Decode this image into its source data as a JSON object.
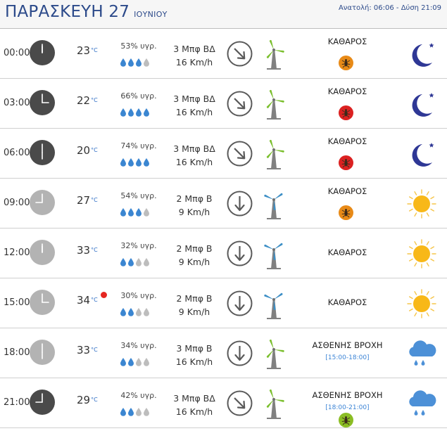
{
  "header": {
    "day": "ΠΑΡΑΣΚΕΥΗ 27",
    "month": "ΙΟΥΝΙΟΥ",
    "sun_times": "Ανατολή: 06:06  - Δύση 21:09"
  },
  "colors": {
    "title_blue": "#2c4a8a",
    "drop_filled": "#3b86d1",
    "drop_empty": "#bdbdbd",
    "turbine_green": "#7bbf2e",
    "turbine_blue": "#3d8fc6",
    "moon": "#2e3795",
    "sun": "#f8b818",
    "cloud": "#4c90d7",
    "badge_orange": "#e88a17",
    "badge_red": "#db2121",
    "badge_green": "#8bbd24",
    "hot_dot": "#e52620"
  },
  "rows": [
    {
      "time": "00:00",
      "clock": "dark",
      "temp": "23",
      "temp_unit": "°C",
      "hot": false,
      "humidity": "53% υγρ.",
      "drops_filled": 3,
      "wind_force": "3 Μπφ ΒΔ",
      "wind_speed": "16 Km/h",
      "wind_dir": "NW",
      "turbine": "green",
      "condition": "ΚΑΘΑΡΟΣ",
      "range": "",
      "badge": "orange",
      "weather_icon": "moon-icon"
    },
    {
      "time": "03:00",
      "clock": "dark",
      "temp": "22",
      "temp_unit": "°C",
      "hot": false,
      "humidity": "66% υγρ.",
      "drops_filled": 4,
      "wind_force": "3 Μπφ ΒΔ",
      "wind_speed": "16 Km/h",
      "wind_dir": "NW",
      "turbine": "green",
      "condition": "ΚΑΘΑΡΟΣ",
      "range": "",
      "badge": "red",
      "weather_icon": "moon-icon"
    },
    {
      "time": "06:00",
      "clock": "dark",
      "temp": "20",
      "temp_unit": "°C",
      "hot": false,
      "humidity": "74% υγρ.",
      "drops_filled": 4,
      "wind_force": "3 Μπφ ΒΔ",
      "wind_speed": "16 Km/h",
      "wind_dir": "NW",
      "turbine": "green",
      "condition": "ΚΑΘΑΡΟΣ",
      "range": "",
      "badge": "red",
      "weather_icon": "moon-icon"
    },
    {
      "time": "09:00",
      "clock": "light",
      "temp": "27",
      "temp_unit": "°C",
      "hot": false,
      "humidity": "54% υγρ.",
      "drops_filled": 3,
      "wind_force": "2 Μπφ Β",
      "wind_speed": "9 Km/h",
      "wind_dir": "N",
      "turbine": "blue",
      "condition": "ΚΑΘΑΡΟΣ",
      "range": "",
      "badge": "orange",
      "weather_icon": "sun-icon"
    },
    {
      "time": "12:00",
      "clock": "light",
      "temp": "33",
      "temp_unit": "°C",
      "hot": false,
      "humidity": "32% υγρ.",
      "drops_filled": 2,
      "wind_force": "2 Μπφ Β",
      "wind_speed": "9 Km/h",
      "wind_dir": "N",
      "turbine": "blue",
      "condition": "ΚΑΘΑΡΟΣ",
      "range": "",
      "badge": "",
      "weather_icon": "sun-icon"
    },
    {
      "time": "15:00",
      "clock": "light",
      "temp": "34",
      "temp_unit": "°C",
      "hot": true,
      "humidity": "30% υγρ.",
      "drops_filled": 2,
      "wind_force": "2 Μπφ Β",
      "wind_speed": "9 Km/h",
      "wind_dir": "N",
      "turbine": "blue",
      "condition": "ΚΑΘΑΡΟΣ",
      "range": "",
      "badge": "",
      "weather_icon": "sun-icon"
    },
    {
      "time": "18:00",
      "clock": "light",
      "temp": "33",
      "temp_unit": "°C",
      "hot": false,
      "humidity": "34% υγρ.",
      "drops_filled": 2,
      "wind_force": "3 Μπφ Β",
      "wind_speed": "16 Km/h",
      "wind_dir": "N",
      "turbine": "green",
      "condition": "ΑΣΘΕΝΗΣ ΒΡΟΧΗ",
      "range": "[15:00-18:00]",
      "badge": "",
      "weather_icon": "rain-cloud-icon"
    },
    {
      "time": "21:00",
      "clock": "dark",
      "temp": "29",
      "temp_unit": "°C",
      "hot": false,
      "humidity": "42% υγρ.",
      "drops_filled": 2,
      "wind_force": "3 Μπφ ΒΔ",
      "wind_speed": "16 Km/h",
      "wind_dir": "NW",
      "turbine": "green",
      "condition": "ΑΣΘΕΝΗΣ ΒΡΟΧΗ",
      "range": "[18:00-21:00]",
      "badge": "green",
      "weather_icon": "rain-cloud-icon"
    }
  ]
}
